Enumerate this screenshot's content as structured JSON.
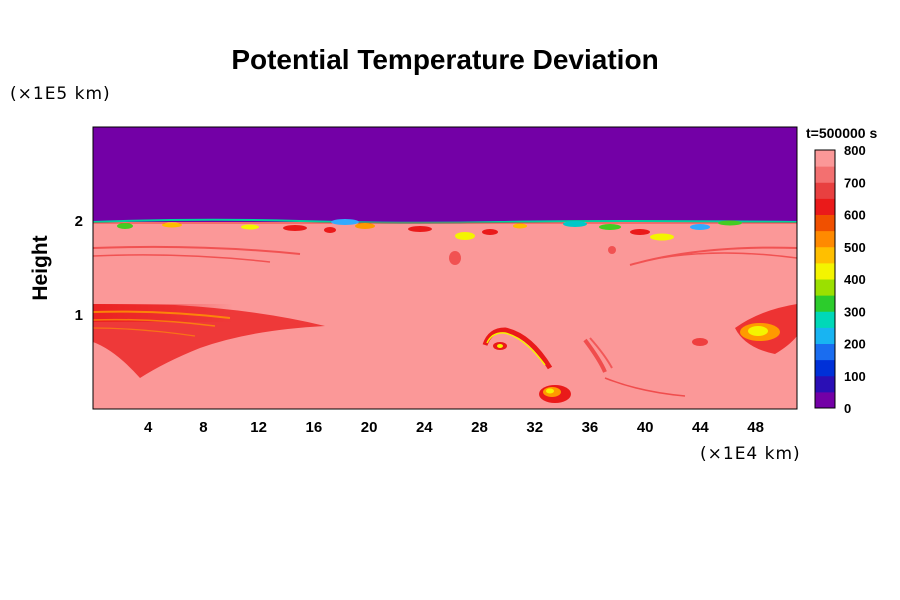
{
  "chart_data": {
    "type": "heatmap",
    "title": "Potential Temperature Deviation",
    "ylabel": "Height",
    "y_unit": "(×1E5 km)",
    "x_unit": "(×1E4 km)",
    "time_label": "t=500000 s",
    "x_ticks": [
      4,
      8,
      12,
      16,
      20,
      24,
      28,
      32,
      36,
      40,
      44,
      48
    ],
    "y_ticks": [
      1,
      2
    ],
    "xlim": [
      0,
      51
    ],
    "ylim": [
      0,
      3
    ],
    "colorbar": {
      "min": 0,
      "max": 800,
      "ticks": [
        0,
        100,
        200,
        300,
        400,
        500,
        600,
        700,
        800
      ]
    },
    "field": {
      "upper_region_value": 0,
      "lower_region_value": 800,
      "interface_height": 2.0
    }
  },
  "colors": {
    "background": "#ffffff",
    "upper_region": "#7300a6",
    "lower_region": "#fb9898",
    "hot_red": "#ea1a1a",
    "orange": "#ff9a00",
    "yellow": "#f4f400"
  }
}
